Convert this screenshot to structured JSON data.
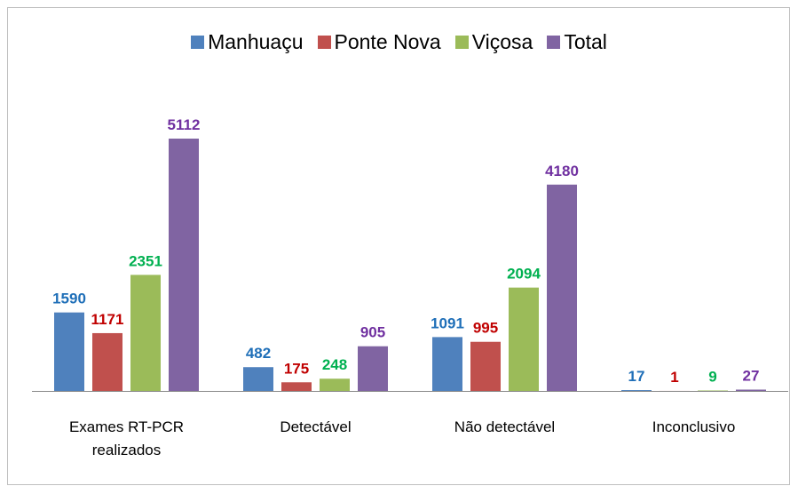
{
  "chart_data": {
    "type": "bar",
    "categories": [
      "Exames RT-PCR realizados",
      "Detectável",
      "Não detectável",
      "Inconclusivo"
    ],
    "series": [
      {
        "name": "Manhuaçu",
        "color": "#4f81bd",
        "label_color": "#1f6fb8",
        "values": [
          1590,
          482,
          1091,
          17
        ]
      },
      {
        "name": "Ponte Nova",
        "color": "#c0504d",
        "label_color": "#c00000",
        "values": [
          1171,
          175,
          995,
          1
        ]
      },
      {
        "name": "Viçosa",
        "color": "#9bbb59",
        "label_color": "#00b050",
        "values": [
          2351,
          248,
          2094,
          9
        ]
      },
      {
        "name": "Total",
        "color": "#8064a2",
        "label_color": "#7030a0",
        "values": [
          5112,
          905,
          4180,
          27
        ]
      }
    ],
    "legend": "top"
  }
}
